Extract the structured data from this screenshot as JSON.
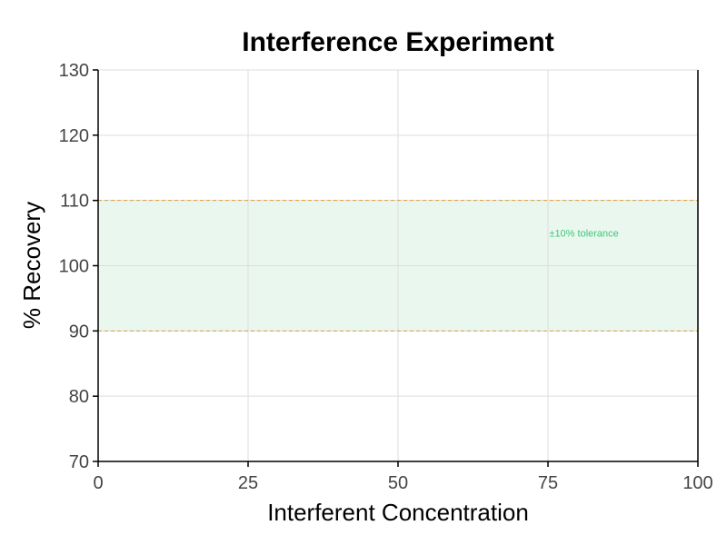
{
  "chart_data": {
    "type": "line",
    "title": "Interference Experiment",
    "xlabel": "Interferent Concentration",
    "ylabel": "% Recovery",
    "xlim": [
      0,
      100
    ],
    "ylim": [
      70,
      130
    ],
    "x_ticks": [
      0,
      25,
      50,
      75,
      100
    ],
    "y_ticks": [
      70,
      80,
      90,
      100,
      110,
      120,
      130
    ],
    "x_tick_labels": [
      "0",
      "25",
      "50",
      "75",
      "100"
    ],
    "y_tick_labels": [
      "70",
      "80",
      "90",
      "100",
      "110",
      "120",
      "130"
    ],
    "grid": true,
    "series": [],
    "tolerance_band": {
      "lower": 90,
      "upper": 110,
      "label": "±10% tolerance",
      "label_x": 81,
      "label_y": 105,
      "fill_color": "#eaf7ef",
      "line_color": "#e0a030",
      "label_color": "#3cc878"
    },
    "colors": {
      "grid": "#dddddd",
      "axis": "#000000"
    }
  }
}
